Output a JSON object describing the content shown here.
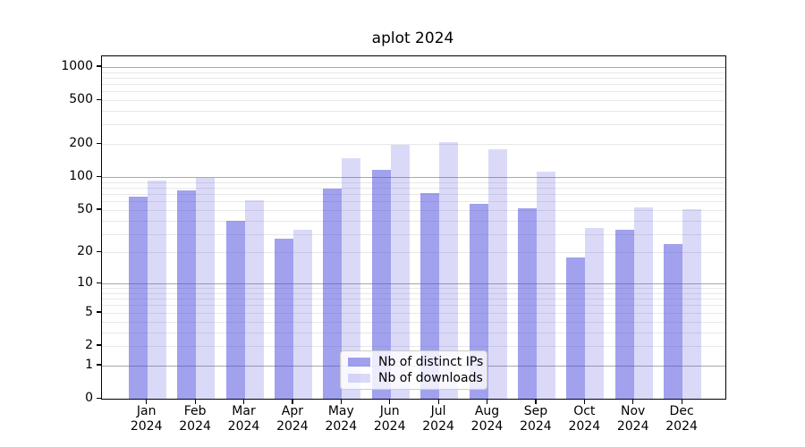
{
  "chart_data": {
    "type": "bar",
    "title": "aplot 2024",
    "categories": [
      "Jan",
      "Feb",
      "Mar",
      "Apr",
      "May",
      "Jun",
      "Jul",
      "Aug",
      "Sep",
      "Oct",
      "Nov",
      "Dec"
    ],
    "xtick_year": "2024",
    "series": [
      {
        "name": "Nb of distinct IPs",
        "color": "rgba(68,68,221,0.5)",
        "values": [
          66,
          76,
          40,
          27,
          78,
          116,
          72,
          57,
          52,
          18,
          33,
          24
        ]
      },
      {
        "name": "Nb of downloads",
        "color": "rgba(68,68,221,0.2)",
        "values": [
          93,
          99,
          61,
          33,
          148,
          197,
          209,
          178,
          112,
          34,
          53,
          51
        ]
      }
    ],
    "yticks": [
      1000,
      500,
      200,
      100,
      50,
      20,
      10,
      5,
      2,
      1,
      0
    ],
    "scale": "log1p",
    "ylim_top": 1248,
    "grid": {
      "major": [
        1,
        10,
        100,
        1000
      ],
      "minor_decades": true
    },
    "grid_major_color": "#a9a9a9",
    "grid_minor_color": "#e8e8e8",
    "axis_color": "#000000",
    "background": "#ffffff",
    "legend_position": "lower-center",
    "xlabel": "",
    "ylabel": ""
  }
}
